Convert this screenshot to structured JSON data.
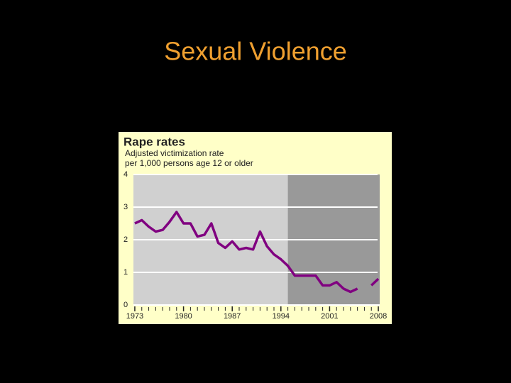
{
  "slide_title": "Sexual Violence",
  "chart_data": {
    "type": "line",
    "title": "Rape rates",
    "subtitle": [
      "Adjusted victimization rate",
      "per 1,000 persons age 12 or older"
    ],
    "x": [
      1973,
      1974,
      1975,
      1976,
      1977,
      1978,
      1979,
      1980,
      1981,
      1982,
      1983,
      1984,
      1985,
      1986,
      1987,
      1988,
      1989,
      1990,
      1991,
      1992,
      1993,
      1994,
      1995,
      1996,
      1997,
      1998,
      1999,
      2000,
      2001,
      2002,
      2003,
      2004,
      2005,
      2006,
      2007,
      2008
    ],
    "series": [
      {
        "color": "#800080",
        "values": [
          2.5,
          2.6,
          2.4,
          2.25,
          2.3,
          2.55,
          2.85,
          2.5,
          2.5,
          2.1,
          2.15,
          2.5,
          1.9,
          1.75,
          1.95,
          1.7,
          1.75,
          1.7,
          2.25,
          1.8,
          1.55,
          1.4,
          1.2,
          0.9,
          0.9,
          0.9,
          0.9,
          0.6,
          0.6,
          0.7,
          0.5,
          0.4,
          0.5,
          null,
          0.6,
          0.8
        ]
      }
    ],
    "xlim": [
      1972.8,
      2008.2
    ],
    "xticks": [
      1973,
      1980,
      1987,
      1994,
      2001,
      2008
    ],
    "ylim": [
      0,
      4
    ],
    "yticks": [
      0,
      1,
      2,
      3,
      4
    ],
    "grid": true,
    "shaded_from": 1995
  }
}
